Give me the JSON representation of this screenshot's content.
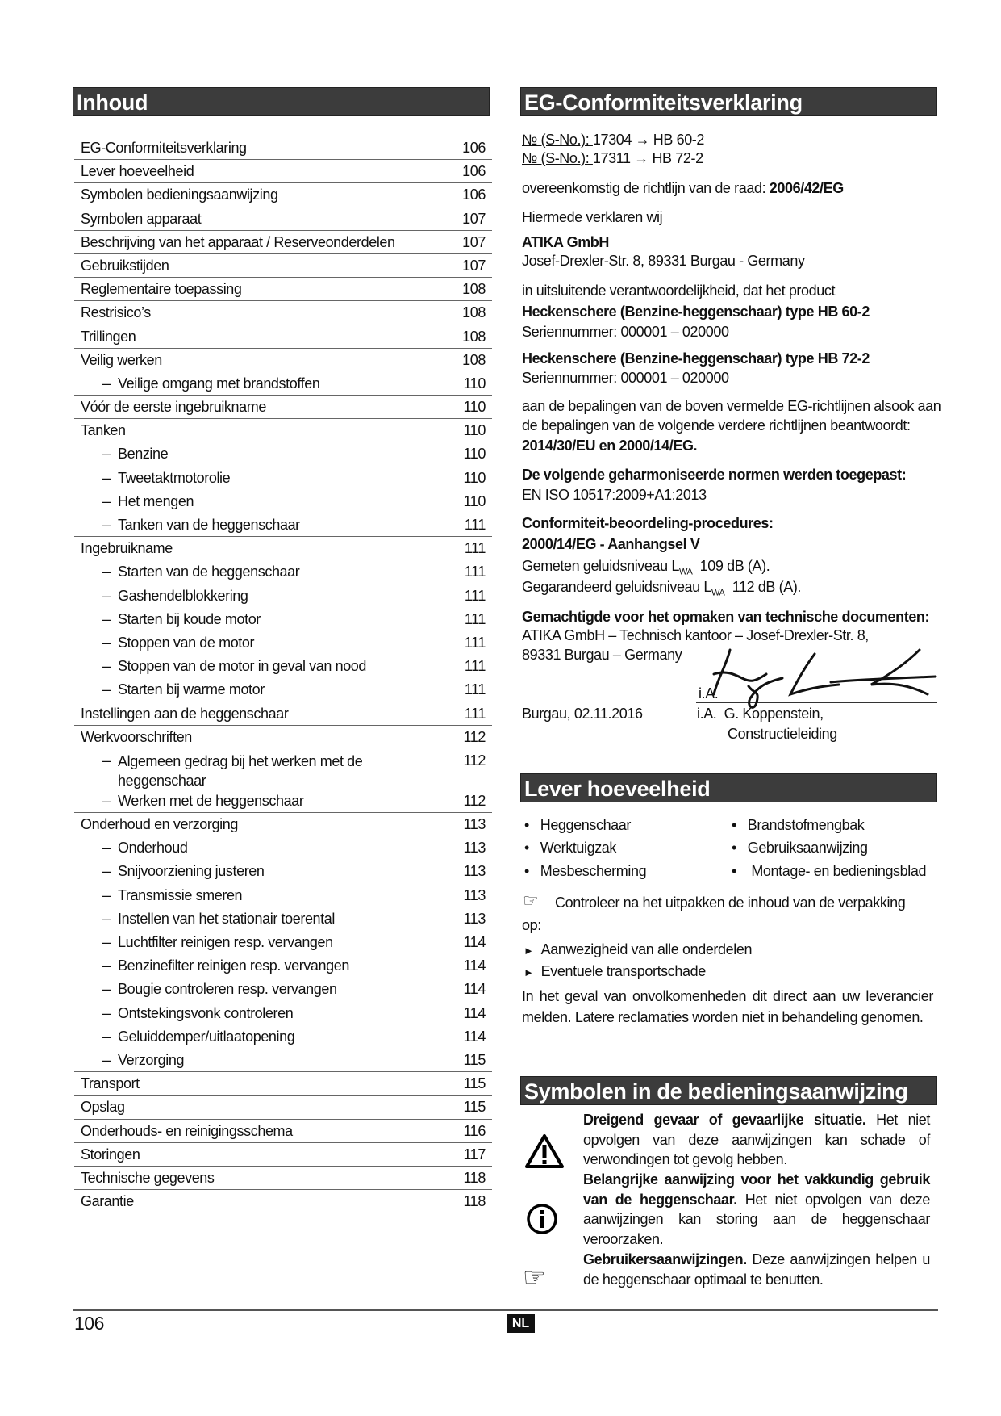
{
  "toc": {
    "title": "Inhoud",
    "items": [
      {
        "level": 0,
        "label": "EG-Conformiteitsverklaring",
        "page": "106"
      },
      {
        "level": 0,
        "label": "Lever hoeveelheid",
        "page": "106"
      },
      {
        "level": 0,
        "label": "Symbolen bedieningsaanwijzing",
        "page": "106"
      },
      {
        "level": 0,
        "label": "Symbolen apparaat",
        "page": "107"
      },
      {
        "level": 0,
        "label": "Beschrijving van het apparaat / Reserveonderdelen",
        "page": "107"
      },
      {
        "level": 0,
        "label": "Gebruikstijden",
        "page": "107"
      },
      {
        "level": 0,
        "label": "Reglementaire toepassing",
        "page": "108"
      },
      {
        "level": 0,
        "label": "Restrisico’s",
        "page": "108"
      },
      {
        "level": 0,
        "label": "Trillingen",
        "page": "108"
      },
      {
        "level": 0,
        "label": "Veilig werken",
        "page": "108"
      },
      {
        "level": 1,
        "label": "Veilige omgang met brandstoffen",
        "page": "110"
      },
      {
        "level": 0,
        "label": "Vóór de eerste ingebruikname",
        "page": "110"
      },
      {
        "level": 0,
        "label": "Tanken",
        "page": "110"
      },
      {
        "level": 1,
        "label": "Benzine",
        "page": "110"
      },
      {
        "level": 1,
        "label": "Tweetaktmotorolie",
        "page": "110"
      },
      {
        "level": 1,
        "label": "Het mengen",
        "page": "110"
      },
      {
        "level": 1,
        "label": "Tanken van de heggenschaar",
        "page": "111"
      },
      {
        "level": 0,
        "label": "Ingebruikname",
        "page": "111"
      },
      {
        "level": 1,
        "label": "Starten van de heggenschaar",
        "page": "111"
      },
      {
        "level": 1,
        "label": "Gashendelblokkering",
        "page": "111"
      },
      {
        "level": 1,
        "label": "Starten bij koude motor",
        "page": "111"
      },
      {
        "level": 1,
        "label": "Stoppen van de motor",
        "page": "111"
      },
      {
        "level": 1,
        "label": "Stoppen van de motor in geval van nood",
        "page": "111"
      },
      {
        "level": 1,
        "label": "Starten bij warme motor",
        "page": "111"
      },
      {
        "level": 0,
        "label": "Instellingen aan de heggenschaar",
        "page": "111"
      },
      {
        "level": 0,
        "label": "Werkvoorschriften",
        "page": "112"
      },
      {
        "level": 1,
        "label": "Algemeen gedrag bij het werken met de heggenschaar",
        "page": "112"
      },
      {
        "level": 1,
        "label": "Werken met de heggenschaar",
        "page": "112"
      },
      {
        "level": 0,
        "label": "Onderhoud en verzorging",
        "page": "113"
      },
      {
        "level": 1,
        "label": "Onderhoud",
        "page": "113"
      },
      {
        "level": 1,
        "label": "Snijvoorziening justeren",
        "page": "113"
      },
      {
        "level": 1,
        "label": "Transmissie smeren",
        "page": "113"
      },
      {
        "level": 1,
        "label": "Instellen van het stationair toerental",
        "page": "113"
      },
      {
        "level": 1,
        "label": "Luchtfilter reinigen resp. vervangen",
        "page": "114"
      },
      {
        "level": 1,
        "label": "Benzinefilter reinigen resp. vervangen",
        "page": "114"
      },
      {
        "level": 1,
        "label": "Bougie controleren resp. vervangen",
        "page": "114"
      },
      {
        "level": 1,
        "label": "Ontstekingsvonk controleren",
        "page": "114"
      },
      {
        "level": 1,
        "label": "Geluiddemper/uitlaatopening",
        "page": "114"
      },
      {
        "level": 1,
        "label": "Verzorging",
        "page": "115"
      },
      {
        "level": 0,
        "label": "Transport",
        "page": "115"
      },
      {
        "level": 0,
        "label": "Opslag",
        "page": "115"
      },
      {
        "level": 0,
        "label": "Onderhouds- en reinigingsschema",
        "page": "116"
      },
      {
        "level": 0,
        "label": "Storingen",
        "page": "117"
      },
      {
        "level": 0,
        "label": "Technische gegevens",
        "page": "118"
      },
      {
        "level": 0,
        "label": "Garantie",
        "page": "118"
      }
    ]
  },
  "conformity": {
    "title": "EG-Conformiteitsverklaring",
    "sno_label": "№ (S-No.): ",
    "sno1": "17304 → HB 60-2",
    "sno2": "17311 → HB 72-2",
    "directive_text": "overeenkomstig de richtlijn van de raad: ",
    "directive": "2006/42/EG",
    "declare": "Hiermede verklaren wij",
    "company": "ATIKA GmbH",
    "address": "Josef-Drexler-Str. 8, 89331 Burgau - Germany",
    "responsibility": "in uitsluitende verantwoordelijkheid, dat het product",
    "product1": "Heckenschere (Benzine-heggenschaar) type HB 60-2",
    "serial1": "Seriennummer: 000001 – 020000",
    "product2": "Heckenschere (Benzine-heggenschaar) type HB 72-2",
    "serial2": "Seriennummer: 000001 – 020000",
    "provisions1": "aan de bepalingen van de boven vermelde EG-richtlijnen alsook aan",
    "provisions2": "de bepalingen van de volgende verdere richtlijnen beantwoordt:",
    "directives": "2014/30/EU en 2000/14/EG.",
    "norms_title": "De volgende geharmoniseerde normen werden toegepast:",
    "norms": "EN ISO 10517:2009+A1:2013",
    "procedures_title": "Conformiteit-beoordeling-procedures:",
    "procedures": "2000/14/EG - Aanhangsel V",
    "measured_label": "Gemeten geluidsniveau L",
    "measured_sub": "WA",
    "measured_value": "109 dB (A).",
    "guaranteed_label": "Gegarandeerd geluidsniveau L",
    "guaranteed_sub": "WA",
    "guaranteed_value": "112 dB (A).",
    "authorized_title": "Gemachtigde voor het opmaken van technische documenten:",
    "authorized1": "ATIKA GmbH – Technisch kantoor – Josef-Drexler-Str. 8,",
    "authorized2": "89331 Burgau – Germany",
    "sig_ia": "i.A.",
    "place_date": "Burgau, 02.11.2016",
    "signer": "i.A.  G. Koppenstein,",
    "signer_role": "Constructieleiding"
  },
  "delivery": {
    "title": "Lever hoeveelheid",
    "items_left": [
      "Heggenschaar",
      "Werktuigzak",
      "Mesbescherming"
    ],
    "items_right": [
      "Brandstofmengbak",
      "Gebruiksaanwijzing",
      "Montage- en bedieningsblad"
    ],
    "check_text": "Controleer na het uitpakken de inhoud van de verpakking",
    "check_text2": "op:",
    "checks": [
      "Aanwezigheid van alle onderdelen",
      "Eventuele transportschade"
    ],
    "note": "In het geval van onvolkomenheden dit direct aan uw leverancier melden. Latere reclamaties worden niet in behandeling genomen."
  },
  "symbols": {
    "title": "Symbolen in de bedieningsaanwijzing",
    "items": [
      {
        "icon": "warning-triangle-icon",
        "bold": "Dreigend gevaar of gevaarlijke situatie.",
        "text": " Het niet opvolgen van deze aanwijzingen kan schade of verwondingen tot gevolg hebben."
      },
      {
        "icon": "info-icon",
        "bold": "Belangrijke aanwijzing voor het vakkundig gebruik van de heggenschaar.",
        "text": " Het niet opvolgen van deze aanwijzingen kan storing aan de heggenschaar veroorzaken."
      },
      {
        "icon": "pointing-hand-icon",
        "bold": "Gebruikersaanwijzingen.",
        "text": " Deze aanwijzingen helpen u de heggenschaar optimaal te benutten."
      }
    ]
  },
  "footer": {
    "page_number": "106",
    "language": "NL"
  }
}
